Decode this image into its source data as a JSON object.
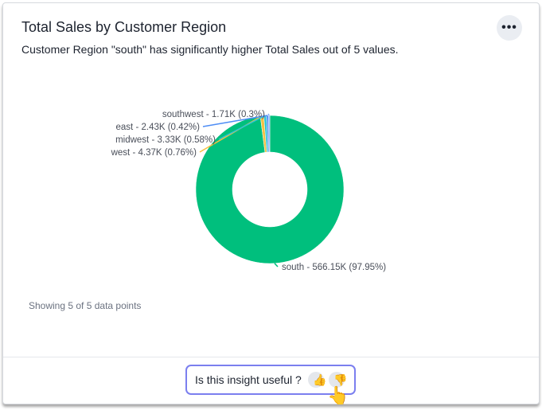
{
  "header": {
    "title": "Total Sales by Customer Region",
    "subtitle": "Customer Region \"south\" has significantly higher Total Sales out of 5 values.",
    "more_icon": "more-horizontal-icon",
    "more_label": "•••"
  },
  "chart_data": {
    "type": "pie",
    "donut": true,
    "slices": [
      {
        "label": "south - 566.15K (97.95%)",
        "name": "south",
        "value": 566.15,
        "percent": 97.95,
        "color": "#00bf7d"
      },
      {
        "label": "west - 4.37K (0.76%)",
        "name": "west",
        "value": 4.37,
        "percent": 0.76,
        "color": "#f5c142"
      },
      {
        "label": "midwest - 3.33K (0.58%)",
        "name": "midwest",
        "value": 3.33,
        "percent": 0.58,
        "color": "#2ec4d6"
      },
      {
        "label": "east - 2.43K (0.42%)",
        "name": "east",
        "value": 2.43,
        "percent": 0.42,
        "color": "#4f8ef5"
      },
      {
        "label": "southwest - 1.71K (0.3%)",
        "name": "southwest",
        "value": 1.71,
        "percent": 0.3,
        "color": "#7fa8f8"
      }
    ]
  },
  "footer_note": "Showing 5 of 5 data points",
  "feedback": {
    "question": "Is this insight useful ?",
    "thumbs_up_icon": "thumbs-up-icon",
    "thumbs_down_icon": "thumbs-down-icon",
    "thumbs_up": "👍",
    "thumbs_down": "👎",
    "cursor": "👆"
  }
}
